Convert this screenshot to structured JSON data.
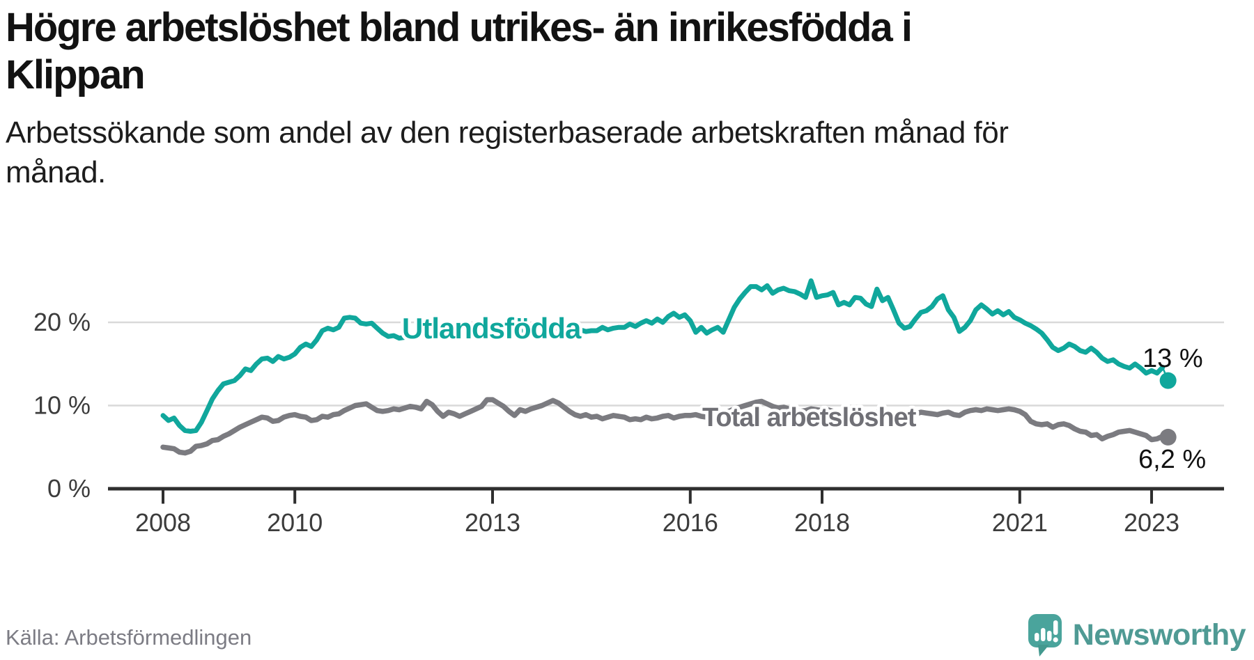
{
  "title": {
    "text": "Högre arbetslöshet bland utrikes- än inrikesfödda i Klippan",
    "lines": [
      "Högre arbetslöshet bland utrikes- än inrikesfödda i",
      "Klippan"
    ]
  },
  "subtitle": {
    "text": "Arbetssökande som andel av den registerbaserade arbetskraften månad för månad.",
    "lines": [
      "Arbetssökande som andel av den registerbaserade arbetskraften månad för",
      "månad."
    ]
  },
  "footer": {
    "source": "Källa: Arbetsförmedlingen",
    "brand": "Newsworthy",
    "brand_icon": "newsworthy-speech-bubble-bar-chart-icon"
  },
  "colors": {
    "accent_teal": "#10a79c",
    "series_gray": "#7b7b80",
    "gridline": "#d9d9d9",
    "axis": "#2e2e2e",
    "tick_label": "#3c3c3c",
    "end_label": "#111111",
    "gray_label": "#707076",
    "source_text": "#7c7c84",
    "wordmark": "#4f9a94",
    "icon_teal": "#4aa49c"
  },
  "chart_data": {
    "type": "line",
    "title": "Högre arbetslöshet bland utrikes- än inrikesfödda i Klippan",
    "xlabel": "",
    "ylabel": "Arbetssökande som andel av den registerbaserade arbetskraften",
    "x_start": "2008-01",
    "x_end": "2023-04",
    "frequency": "monthly",
    "ylim": [
      0,
      30
    ],
    "grid": "horizontal",
    "legend_position": "inline-labels",
    "yticks": [
      {
        "value": 0,
        "label": "0 %"
      },
      {
        "value": 10,
        "label": "10 %"
      },
      {
        "value": 20,
        "label": "20 %"
      }
    ],
    "xticks": [
      {
        "year": 2008,
        "label": "2008"
      },
      {
        "year": 2010,
        "label": "2010"
      },
      {
        "year": 2013,
        "label": "2013"
      },
      {
        "year": 2016,
        "label": "2016"
      },
      {
        "year": 2018,
        "label": "2018"
      },
      {
        "year": 2021,
        "label": "2021"
      },
      {
        "year": 2023,
        "label": "2023"
      }
    ],
    "series": [
      {
        "name": "Utlandsfödda",
        "color": "#10a79c",
        "end_label": "13 %",
        "end_value": 13.0,
        "values": [
          8.8,
          8.2,
          8.5,
          7.6,
          7.0,
          6.9,
          7.0,
          8.0,
          9.4,
          10.8,
          11.8,
          12.6,
          12.8,
          13.0,
          13.6,
          14.4,
          14.2,
          15.0,
          15.6,
          15.7,
          15.3,
          15.9,
          15.6,
          15.8,
          16.2,
          17.0,
          17.4,
          17.1,
          17.9,
          19.0,
          19.3,
          19.1,
          19.4,
          20.5,
          20.6,
          20.5,
          19.9,
          19.8,
          19.9,
          19.3,
          18.7,
          18.3,
          18.4,
          18.1,
          18.2,
          18.4,
          18.3,
          18.6,
          19.0,
          19.4,
          19.6,
          19.3,
          19.6,
          19.8,
          19.6,
          19.3,
          19.5,
          19.7,
          19.4,
          19.2,
          19.5,
          19.7,
          19.3,
          19.0,
          18.7,
          18.9,
          19.2,
          19.0,
          19.4,
          19.6,
          19.3,
          19.1,
          19.4,
          19.6,
          19.2,
          18.9,
          19.1,
          18.9,
          19.0,
          19.0,
          19.4,
          19.1,
          19.3,
          19.4,
          19.4,
          19.8,
          19.5,
          19.9,
          20.2,
          19.9,
          20.4,
          20.0,
          20.7,
          21.1,
          20.6,
          20.9,
          20.2,
          18.8,
          19.4,
          18.7,
          19.1,
          19.4,
          18.8,
          20.3,
          21.8,
          22.8,
          23.6,
          24.3,
          24.3,
          23.9,
          24.4,
          23.5,
          23.9,
          24.1,
          23.8,
          23.7,
          23.4,
          23.0,
          25.0,
          23.0,
          23.2,
          23.3,
          23.6,
          22.1,
          22.4,
          22.1,
          23.0,
          22.9,
          22.2,
          21.9,
          24.0,
          22.6,
          23.0,
          21.5,
          19.9,
          19.3,
          19.5,
          20.4,
          21.2,
          21.4,
          21.9,
          22.8,
          23.2,
          21.5,
          20.6,
          18.9,
          19.4,
          20.2,
          21.5,
          22.1,
          21.6,
          21.0,
          21.4,
          20.9,
          21.3,
          20.6,
          20.3,
          19.9,
          19.6,
          19.2,
          18.7,
          17.9,
          17.0,
          16.6,
          16.9,
          17.4,
          17.1,
          16.6,
          16.4,
          16.9,
          16.4,
          15.7,
          15.3,
          15.5,
          15.0,
          14.7,
          14.5,
          15.0,
          14.5,
          13.9,
          14.2,
          13.9,
          14.6,
          13.0
        ]
      },
      {
        "name": "Total arbetslöshet",
        "color": "#7b7b80",
        "end_label": "6,2 %",
        "end_value": 6.2,
        "values": [
          5.0,
          4.9,
          4.8,
          4.4,
          4.3,
          4.5,
          5.1,
          5.2,
          5.4,
          5.8,
          5.9,
          6.3,
          6.6,
          7.0,
          7.4,
          7.7,
          8.0,
          8.3,
          8.6,
          8.5,
          8.1,
          8.2,
          8.6,
          8.8,
          8.9,
          8.7,
          8.6,
          8.2,
          8.3,
          8.7,
          8.6,
          8.9,
          9.0,
          9.4,
          9.7,
          10.0,
          10.1,
          10.2,
          9.8,
          9.4,
          9.3,
          9.4,
          9.6,
          9.5,
          9.7,
          9.9,
          9.8,
          9.6,
          10.5,
          10.1,
          9.3,
          8.7,
          9.2,
          9.0,
          8.7,
          9.0,
          9.3,
          9.6,
          9.9,
          10.7,
          10.7,
          10.3,
          9.9,
          9.3,
          8.8,
          9.5,
          9.3,
          9.6,
          9.8,
          10.0,
          10.3,
          10.6,
          10.3,
          9.8,
          9.3,
          8.9,
          8.7,
          8.9,
          8.6,
          8.7,
          8.4,
          8.6,
          8.8,
          8.7,
          8.6,
          8.3,
          8.4,
          8.3,
          8.6,
          8.4,
          8.5,
          8.7,
          8.8,
          8.5,
          8.7,
          8.8,
          8.8,
          8.9,
          8.7,
          8.6,
          8.8,
          8.9,
          9.1,
          9.3,
          9.6,
          9.8,
          10.0,
          10.2,
          10.4,
          10.5,
          10.2,
          9.9,
          9.7,
          9.8,
          9.6,
          9.4,
          9.3,
          9.4,
          9.6,
          9.5,
          9.4,
          9.5,
          9.3,
          9.1,
          9.0,
          9.2,
          9.0,
          8.9,
          8.8,
          9.0,
          9.2,
          9.1,
          9.0,
          8.9,
          8.7,
          8.6,
          8.8,
          9.0,
          9.2,
          9.1,
          9.0,
          8.9,
          9.1,
          9.2,
          8.9,
          8.8,
          9.2,
          9.4,
          9.5,
          9.4,
          9.6,
          9.5,
          9.4,
          9.5,
          9.6,
          9.5,
          9.3,
          8.9,
          8.1,
          7.8,
          7.7,
          7.8,
          7.4,
          7.7,
          7.8,
          7.6,
          7.2,
          6.9,
          6.8,
          6.4,
          6.5,
          6.0,
          6.3,
          6.5,
          6.8,
          6.9,
          7.0,
          6.8,
          6.6,
          6.4,
          5.9,
          6.0,
          6.3,
          6.2
        ]
      }
    ]
  }
}
